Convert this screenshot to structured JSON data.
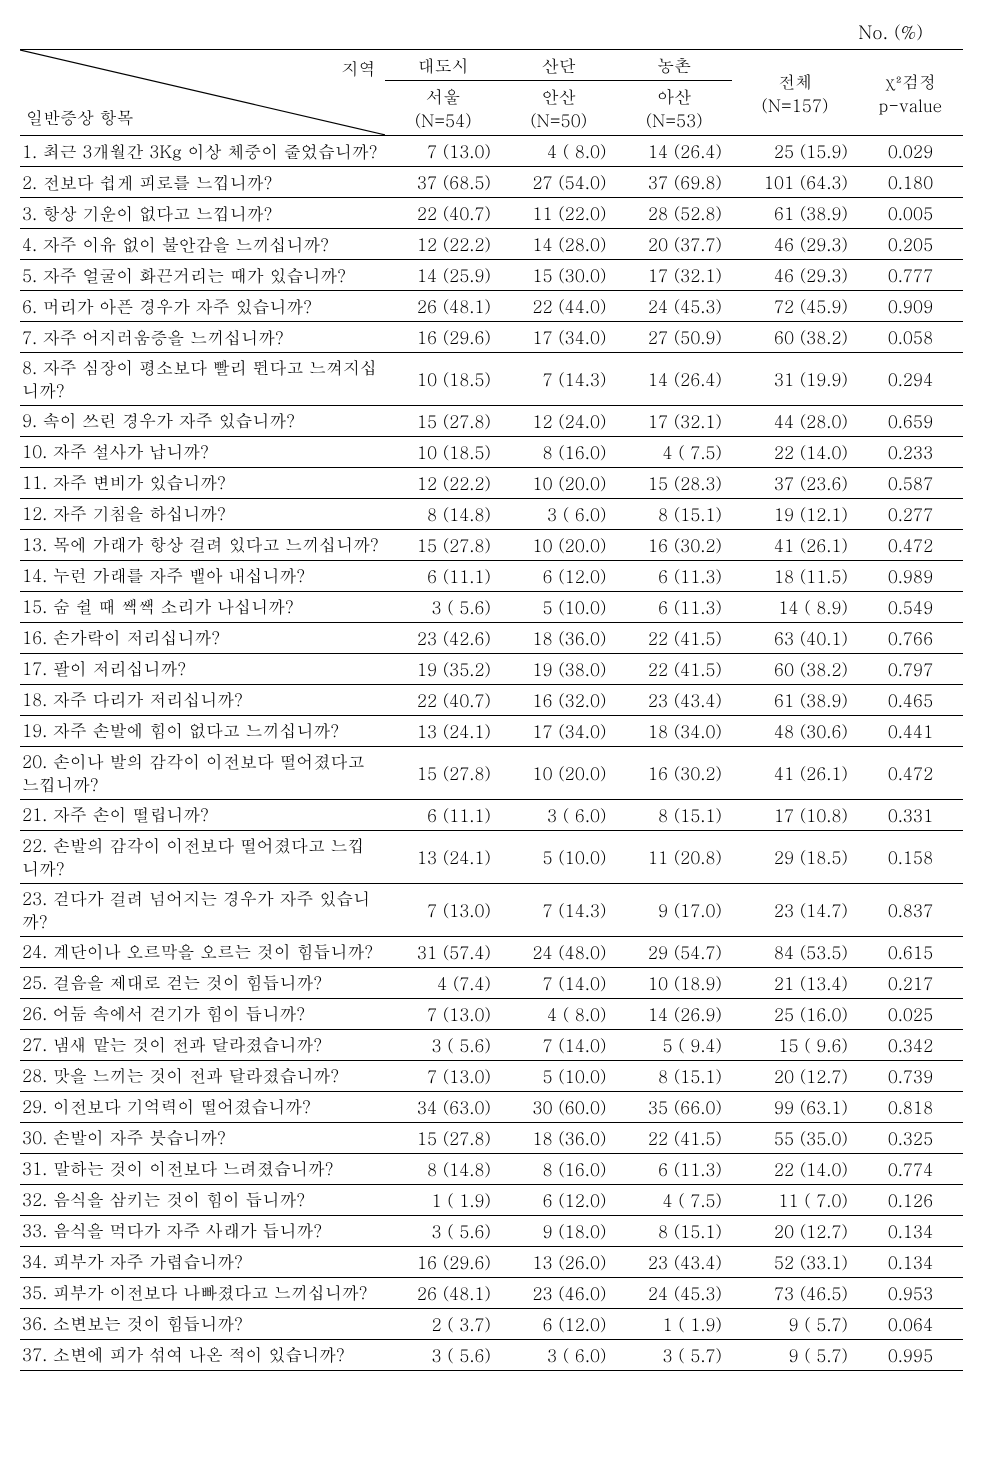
{
  "unit_label": "No. (%)",
  "header": {
    "diag_top": "지역",
    "diag_bottom": "일반증상 항목",
    "groups": [
      "대도시",
      "산단",
      "농촌"
    ],
    "cities": [
      "서울",
      "안산",
      "아산"
    ],
    "city_n": [
      "(N=54)",
      "(N=50)",
      "(N=53)"
    ],
    "total_label": "전체",
    "total_n": "(N=157)",
    "chi_label": "χ²검정",
    "p_label": "p-value"
  },
  "rows": [
    {
      "q": "1. 최근 3개월간 3Kg 이상 체중이 줄었습니까?",
      "c1": "7 (13.0)",
      "c2": "4 ( 8.0)",
      "c3": "14 (26.4)",
      "tot": "25 (15.9)",
      "p": "0.029"
    },
    {
      "q": "2. 전보다 쉽게 피로를 느낍니까?",
      "c1": "37 (68.5)",
      "c2": "27 (54.0)",
      "c3": "37 (69.8)",
      "tot": "101 (64.3)",
      "p": "0.180"
    },
    {
      "q": "3. 항상 기운이 없다고 느낍니까?",
      "c1": "22 (40.7)",
      "c2": "11 (22.0)",
      "c3": "28 (52.8)",
      "tot": "61 (38.9)",
      "p": "0.005"
    },
    {
      "q": "4. 자주 이유 없이 불안감을 느끼십니까?",
      "c1": "12 (22.2)",
      "c2": "14 (28.0)",
      "c3": "20 (37.7)",
      "tot": "46 (29.3)",
      "p": "0.205"
    },
    {
      "q": "5. 자주 얼굴이 화끈거리는 때가 있습니까?",
      "c1": "14 (25.9)",
      "c2": "15 (30.0)",
      "c3": "17 (32.1)",
      "tot": "46 (29.3)",
      "p": "0.777"
    },
    {
      "q": "6. 머리가 아픈 경우가 자주 있습니까?",
      "c1": "26 (48.1)",
      "c2": "22 (44.0)",
      "c3": "24 (45.3)",
      "tot": "72 (45.9)",
      "p": "0.909"
    },
    {
      "q": "7. 자주 어지러움증을 느끼십니까?",
      "c1": "16 (29.6)",
      "c2": "17 (34.0)",
      "c3": "27 (50.9)",
      "tot": "60 (38.2)",
      "p": "0.058"
    },
    {
      "q": "8. 자주 심장이 평소보다 빨리 뛴다고 느껴지십니까?",
      "c1": "10 (18.5)",
      "c2": "7 (14.3)",
      "c3": "14 (26.4)",
      "tot": "31 (19.9)",
      "p": "0.294"
    },
    {
      "q": "9. 속이 쓰린 경우가 자주 있습니까?",
      "c1": "15 (27.8)",
      "c2": "12 (24.0)",
      "c3": "17 (32.1)",
      "tot": "44 (28.0)",
      "p": "0.659"
    },
    {
      "q": "10. 자주 설사가 납니까?",
      "c1": "10 (18.5)",
      "c2": "8 (16.0)",
      "c3": "4 ( 7.5)",
      "tot": "22 (14.0)",
      "p": "0.233"
    },
    {
      "q": "11. 자주 변비가 있습니까?",
      "c1": "12 (22.2)",
      "c2": "10 (20.0)",
      "c3": "15 (28.3)",
      "tot": "37 (23.6)",
      "p": "0.587"
    },
    {
      "q": "12. 자주 기침을 하십니까?",
      "c1": "8 (14.8)",
      "c2": "3 ( 6.0)",
      "c3": "8 (15.1)",
      "tot": "19 (12.1)",
      "p": "0.277"
    },
    {
      "q": "13. 목에 가래가 항상 걸려 있다고 느끼십니까?",
      "c1": "15 (27.8)",
      "c2": "10 (20.0)",
      "c3": "16 (30.2)",
      "tot": "41 (26.1)",
      "p": "0.472"
    },
    {
      "q": "14. 누런 가래를 자주 뱉아 내십니까?",
      "c1": "6 (11.1)",
      "c2": "6 (12.0)",
      "c3": "6 (11.3)",
      "tot": "18 (11.5)",
      "p": "0.989"
    },
    {
      "q": "15. 숨 쉴 때 쌕쌕 소리가 나십니까?",
      "c1": "3 ( 5.6)",
      "c2": "5 (10.0)",
      "c3": "6 (11.3)",
      "tot": "14 ( 8.9)",
      "p": "0.549"
    },
    {
      "q": "16. 손가락이 저리십니까?",
      "c1": "23 (42.6)",
      "c2": "18 (36.0)",
      "c3": "22 (41.5)",
      "tot": "63 (40.1)",
      "p": "0.766"
    },
    {
      "q": "17. 팔이 저리십니까?",
      "c1": "19 (35.2)",
      "c2": "19 (38.0)",
      "c3": "22 (41.5)",
      "tot": "60 (38.2)",
      "p": "0.797"
    },
    {
      "q": "18. 자주 다리가 저리십니까?",
      "c1": "22 (40.7)",
      "c2": "16 (32.0)",
      "c3": "23 (43.4)",
      "tot": "61 (38.9)",
      "p": "0.465"
    },
    {
      "q": "19. 자주 손발에 힘이 없다고 느끼십니까?",
      "c1": "13 (24.1)",
      "c2": "17 (34.0)",
      "c3": "18 (34.0)",
      "tot": "48 (30.6)",
      "p": "0.441"
    },
    {
      "q": "20. 손이나 발의 감각이 이전보다 떨어졌다고 느낍니까?",
      "c1": "15 (27.8)",
      "c2": "10 (20.0)",
      "c3": "16 (30.2)",
      "tot": "41 (26.1)",
      "p": "0.472"
    },
    {
      "q": "21. 자주 손이 떨립니까?",
      "c1": "6 (11.1)",
      "c2": "3 ( 6.0)",
      "c3": "8 (15.1)",
      "tot": "17 (10.8)",
      "p": "0.331"
    },
    {
      "q": "22. 손발의 감각이 이전보다 떨어졌다고 느낍니까?",
      "c1": "13 (24.1)",
      "c2": "5 (10.0)",
      "c3": "11 (20.8)",
      "tot": "29 (18.5)",
      "p": "0.158"
    },
    {
      "q": "23. 걷다가 걸려 넘어지는 경우가 자주 있습니까?",
      "c1": "7 (13.0)",
      "c2": "7 (14.3)",
      "c3": "9 (17.0)",
      "tot": "23 (14.7)",
      "p": "0.837"
    },
    {
      "q": "24. 계단이나 오르막을 오르는 것이 힘듭니까?",
      "c1": "31 (57.4)",
      "c2": "24 (48.0)",
      "c3": "29 (54.7)",
      "tot": "84 (53.5)",
      "p": "0.615"
    },
    {
      "q": "25. 걸음을 제대로 걷는 것이 힘듭니까?",
      "c1": "4 (7.4)",
      "c2": "7 (14.0)",
      "c3": "10 (18.9)",
      "tot": "21 (13.4)",
      "p": "0.217"
    },
    {
      "q": "26. 어둠 속에서 걷기가 힘이 듭니까?",
      "c1": "7 (13.0)",
      "c2": "4 ( 8.0)",
      "c3": "14 (26.9)",
      "tot": "25 (16.0)",
      "p": "0.025"
    },
    {
      "q": "27. 냄새 맡는 것이 전과 달라졌습니까?",
      "c1": "3 ( 5.6)",
      "c2": "7 (14.0)",
      "c3": "5 ( 9.4)",
      "tot": "15 ( 9.6)",
      "p": "0.342"
    },
    {
      "q": "28. 맛을 느끼는 것이 전과 달라졌습니까?",
      "c1": "7 (13.0)",
      "c2": "5 (10.0)",
      "c3": "8 (15.1)",
      "tot": "20 (12.7)",
      "p": "0.739"
    },
    {
      "q": "29. 이전보다 기억력이 떨어졌습니까?",
      "c1": "34 (63.0)",
      "c2": "30 (60.0)",
      "c3": "35 (66.0)",
      "tot": "99 (63.1)",
      "p": "0.818"
    },
    {
      "q": "30. 손발이 자주 붓습니까?",
      "c1": "15 (27.8)",
      "c2": "18 (36.0)",
      "c3": "22 (41.5)",
      "tot": "55 (35.0)",
      "p": "0.325"
    },
    {
      "q": "31. 말하는 것이 이전보다 느려졌습니까?",
      "c1": "8 (14.8)",
      "c2": "8 (16.0)",
      "c3": "6 (11.3)",
      "tot": "22 (14.0)",
      "p": "0.774"
    },
    {
      "q": "32. 음식을 삼키는 것이 힘이 듭니까?",
      "c1": "1 ( 1.9)",
      "c2": "6 (12.0)",
      "c3": "4 ( 7.5)",
      "tot": "11 ( 7.0)",
      "p": "0.126"
    },
    {
      "q": "33. 음식을 먹다가 자주 사래가 듭니까?",
      "c1": "3 ( 5.6)",
      "c2": "9 (18.0)",
      "c3": "8 (15.1)",
      "tot": "20 (12.7)",
      "p": "0.134"
    },
    {
      "q": "34. 피부가 자주 가렵습니까?",
      "c1": "16 (29.6)",
      "c2": "13 (26.0)",
      "c3": "23 (43.4)",
      "tot": "52 (33.1)",
      "p": "0.134"
    },
    {
      "q": "35. 피부가 이전보다 나빠졌다고 느끼십니까?",
      "c1": "26 (48.1)",
      "c2": "23 (46.0)",
      "c3": "24 (45.3)",
      "tot": "73 (46.5)",
      "p": "0.953"
    },
    {
      "q": "36. 소변보는 것이 힘듭니까?",
      "c1": "2 ( 3.7)",
      "c2": "6 (12.0)",
      "c3": "1 ( 1.9)",
      "tot": "9 ( 5.7)",
      "p": "0.064"
    },
    {
      "q": "37. 소변에 피가 섞여 나온 적이 있습니까?",
      "c1": "3 ( 5.6)",
      "c2": "3 ( 6.0)",
      "c3": "3 ( 5.7)",
      "tot": "9 ( 5.7)",
      "p": "0.995"
    }
  ],
  "style": {
    "text_color": "#000000",
    "bg_color": "#ffffff",
    "border_color": "#000000",
    "font_size_body": 17,
    "font_size_unit": 18
  }
}
